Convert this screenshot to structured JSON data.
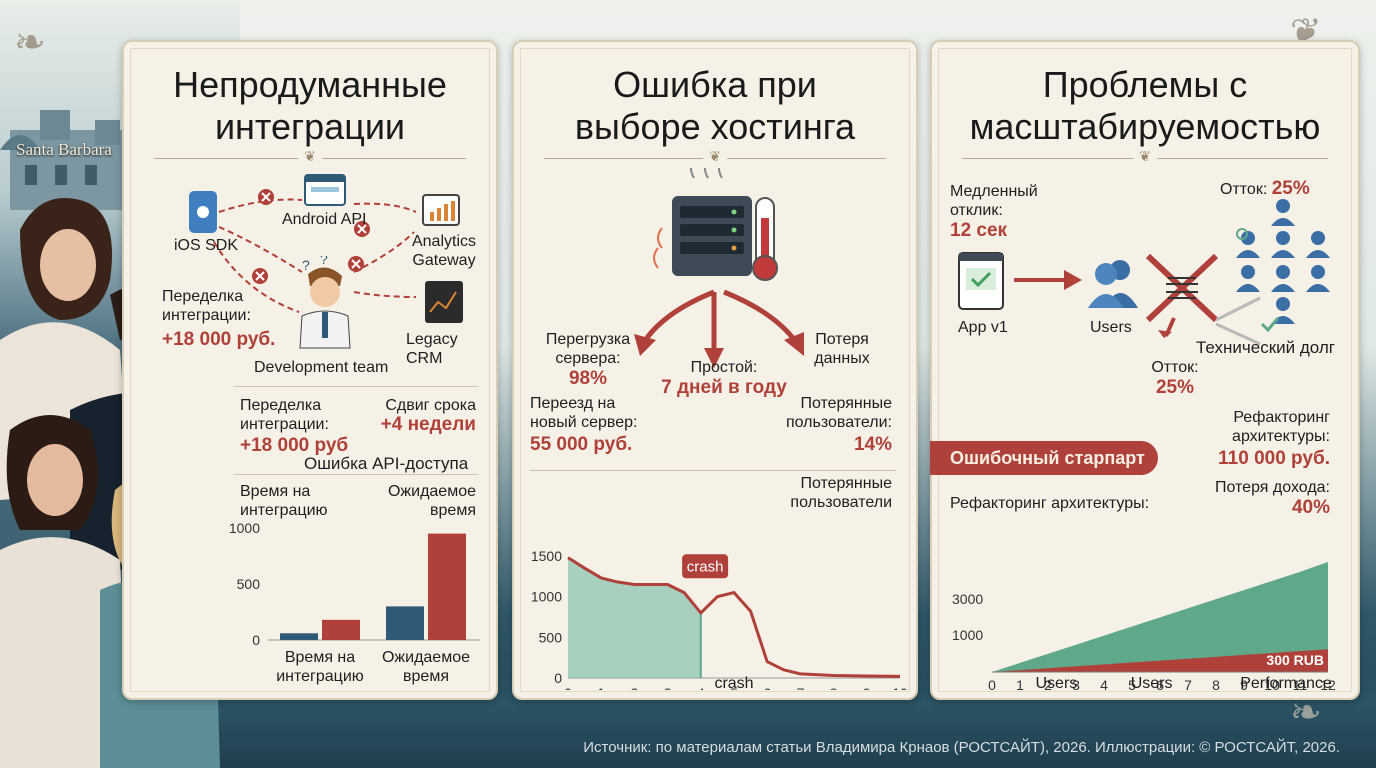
{
  "brand": "Santa Barbara",
  "footer": "Источник: по материалам статьи Владимира Крнаов (РОСТСАЙТ), 2026. Иллюстрации: © РОСТСАЙТ, 2026.",
  "colors": {
    "accent_red": "#b0403a",
    "teal": "#5fa88a",
    "navy": "#2f5a75",
    "panel": "#f6f1e6"
  },
  "panel1": {
    "title_line1": "Непродуманные",
    "title_line2": "интеграции",
    "nodes": {
      "ios": "iOS SDK",
      "android": "Android API",
      "analytics_line1": "Analytics",
      "analytics_line2": "Gateway",
      "crm": "Legacy CRM",
      "team": "Development team"
    },
    "rework_overlay_line1": "Переделка",
    "rework_overlay_line2": "интеграции:",
    "rework_overlay_value": "+18 000 руб.",
    "rework_line1": "Переделка",
    "rework_line2": "интеграции:",
    "rework_value": "+18 000 руб",
    "shift_label": "Сдвиг срока",
    "shift_value": "+4 недели",
    "api_error": "Ошибка API-доступа",
    "time_line1": "Время на",
    "time_line2": "интеграцию",
    "expected_line1": "Ожидаемое",
    "expected_line2": "время",
    "icon_names": [
      "apple-icon",
      "browser-icon",
      "analytics-icon",
      "crm-chart-icon",
      "error-x-icon",
      "developer-icon"
    ]
  },
  "panel2": {
    "title_line1": "Ошибка при",
    "title_line2": "выборе хостинга",
    "overload_line1": "Перегрузка",
    "overload_line2": "сервера:",
    "overload_value": "98%",
    "downtime_label": "Простой:",
    "downtime_value": "7 дней в году",
    "dataloss_line1": "Потеря",
    "dataloss_line2": "данных",
    "move_line1": "Переезд на",
    "move_line2": "новый сервер:",
    "move_value": "55 000 руб.",
    "lost_users_line1": "Потерянные",
    "lost_users_line2": "пользователи:",
    "lost_users_value": "14%",
    "lost_users2_line1": "Потерянные",
    "lost_users2_line2": "пользователи",
    "crash_label": "crash",
    "icon_names": [
      "server-rack-icon",
      "thermometer-icon",
      "heat-wave-icon"
    ]
  },
  "panel3": {
    "title_line1": "Проблемы с",
    "title_line2": "масштабируемостью",
    "slow_line1": "Медленный",
    "slow_line2": "отклик:",
    "slow_value": "12 сек",
    "churn_top_label": "Отток:",
    "churn_top_value": "25%",
    "app": "App v1",
    "users": "Users",
    "tech_debt": "Технический долг",
    "churn_label": "Отток:",
    "churn_value": "25%",
    "refactor_line1": "Рефакторинг",
    "refactor_line2": "архитектуры:",
    "refactor_value": "110 000 руб.",
    "badge": "Ошибочный старпарт",
    "refactor_inline": "Рефакторинг архитектуры:",
    "income_loss_label": "Потеря дохода:",
    "income_loss_value": "40%",
    "rub_label": "300 RUB",
    "icon_names": [
      "app-window-icon",
      "users-icon",
      "broken-connection-icon",
      "user-group-icon"
    ]
  },
  "chart_data": [
    {
      "type": "bar",
      "categories": [
        "Время на интеграцию",
        "Ожидаемое время"
      ],
      "category_labels": [
        [
          "Время на",
          "интеграцию"
        ],
        [
          "Ожидаемое",
          "время"
        ]
      ],
      "series": [
        {
          "color": "#2f5a75",
          "values": [
            60,
            300
          ]
        },
        {
          "color": "#b0403a",
          "values": [
            180,
            950
          ]
        }
      ],
      "ylim": [
        0,
        1000
      ],
      "yticks": [
        0,
        500,
        1000
      ]
    },
    {
      "type": "area",
      "x": [
        0,
        0.5,
        1,
        1.5,
        2,
        2.5,
        3,
        3.5,
        4,
        4.5,
        5,
        5.5,
        6,
        6.5,
        7,
        8,
        9,
        10
      ],
      "y": [
        1480,
        1350,
        1230,
        1180,
        1150,
        1150,
        1150,
        1050,
        800,
        1000,
        1050,
        820,
        200,
        100,
        50,
        30,
        25,
        20
      ],
      "highlight_until_x": 4,
      "annotation": "crash",
      "xlabel": "crash",
      "xlim": [
        0,
        10
      ],
      "ylim": [
        0,
        1500
      ],
      "xticks": [
        0,
        1,
        2,
        3,
        4,
        5,
        6,
        7,
        8,
        9,
        10
      ],
      "yticks": [
        0,
        500,
        1000,
        1500
      ]
    },
    {
      "type": "area",
      "x": [
        0,
        1,
        2,
        3,
        4,
        5,
        6,
        7,
        8,
        9,
        10,
        11,
        12
      ],
      "series": [
        {
          "color": "#5fa88a",
          "values": [
            0,
            120,
            240,
            360,
            480,
            600,
            720,
            840,
            960,
            1080,
            1200,
            1320,
            1450
          ]
        },
        {
          "color": "#b0403a",
          "values": [
            0,
            25,
            50,
            75,
            100,
            125,
            150,
            175,
            200,
            225,
            250,
            275,
            300
          ]
        }
      ],
      "xticks": [
        0,
        1,
        2,
        3,
        4,
        5,
        6,
        7,
        8,
        9,
        10,
        11,
        12
      ],
      "ytick_labels": [
        "1000",
        "3000"
      ],
      "category_labels": [
        "Users",
        "Users",
        "Performance"
      ]
    }
  ]
}
